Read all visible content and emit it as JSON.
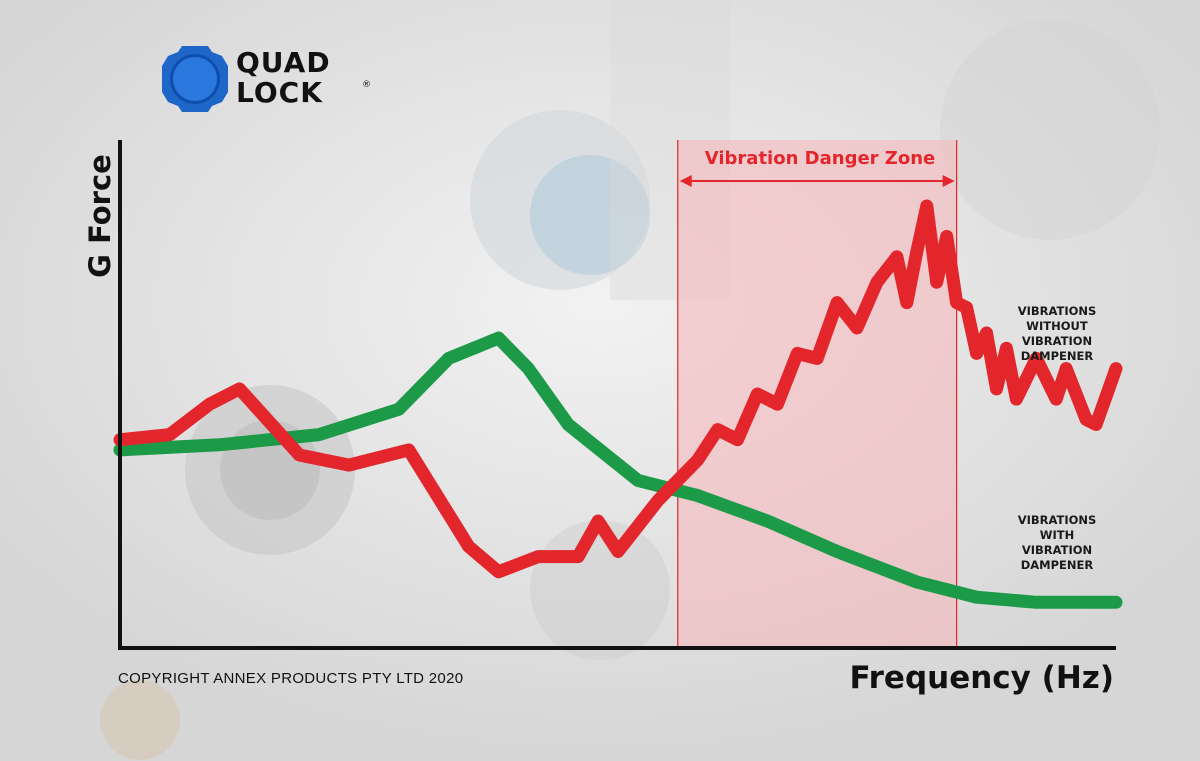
{
  "brand": {
    "name_line1": "QUAD",
    "name_line2": "LOCK",
    "reg_mark": "®"
  },
  "copyright": "COPYRIGHT ANNEX PRODUCTS PTY LTD 2020",
  "colors": {
    "red_series": "#e3262b",
    "green_series": "#1c9a48",
    "danger_zone_fill": "#f7b9bc",
    "logo_blue": "#1f66c9"
  },
  "chart_data": {
    "type": "line",
    "title": "",
    "xlabel": "Frequency (Hz)",
    "ylabel": "G Force",
    "xlim": [
      0,
      100
    ],
    "ylim": [
      0,
      100
    ],
    "grid": false,
    "ticks": "none",
    "annotation": {
      "label": "Vibration Danger Zone",
      "x_start": 56,
      "x_end": 84
    },
    "series": [
      {
        "name": "VIBRATIONS WITHOUT VIBRATION DAMPENER",
        "name_lines": [
          "VIBRATIONS",
          "WITHOUT",
          "VIBRATION",
          "DAMPENER"
        ],
        "color": "#e3262b",
        "points": [
          [
            0,
            41
          ],
          [
            5,
            42
          ],
          [
            9,
            48
          ],
          [
            12,
            51
          ],
          [
            18,
            38
          ],
          [
            23,
            36
          ],
          [
            29,
            39
          ],
          [
            35,
            20
          ],
          [
            38,
            15
          ],
          [
            42,
            18
          ],
          [
            46,
            18
          ],
          [
            48,
            25
          ],
          [
            50,
            19
          ],
          [
            54,
            29
          ],
          [
            58,
            37
          ],
          [
            60,
            43
          ],
          [
            62,
            41
          ],
          [
            64,
            50
          ],
          [
            66,
            48
          ],
          [
            68,
            58
          ],
          [
            70,
            57
          ],
          [
            72,
            68
          ],
          [
            74,
            63
          ],
          [
            76,
            72
          ],
          [
            78,
            77
          ],
          [
            79,
            68
          ],
          [
            80,
            78
          ],
          [
            81,
            87
          ],
          [
            82,
            72
          ],
          [
            83,
            81
          ],
          [
            84,
            68
          ],
          [
            85,
            67
          ],
          [
            86,
            58
          ],
          [
            87,
            62
          ],
          [
            88,
            51
          ],
          [
            89,
            59
          ],
          [
            90,
            49
          ],
          [
            92,
            57
          ],
          [
            94,
            49
          ],
          [
            95,
            55
          ],
          [
            97,
            45
          ],
          [
            98,
            44
          ],
          [
            100,
            55
          ]
        ]
      },
      {
        "name": "VIBRATIONS WITH VIBRATION DAMPENER",
        "name_lines": [
          "VIBRATIONS",
          "WITH",
          "VIBRATION",
          "DAMPENER"
        ],
        "color": "#1c9a48",
        "points": [
          [
            0,
            39
          ],
          [
            10,
            40
          ],
          [
            20,
            42
          ],
          [
            28,
            47
          ],
          [
            33,
            57
          ],
          [
            38,
            61
          ],
          [
            41,
            55
          ],
          [
            45,
            44
          ],
          [
            52,
            33
          ],
          [
            58,
            30
          ],
          [
            65,
            25
          ],
          [
            72,
            19
          ],
          [
            80,
            13
          ],
          [
            86,
            10
          ],
          [
            92,
            9
          ],
          [
            100,
            9
          ]
        ]
      }
    ]
  }
}
